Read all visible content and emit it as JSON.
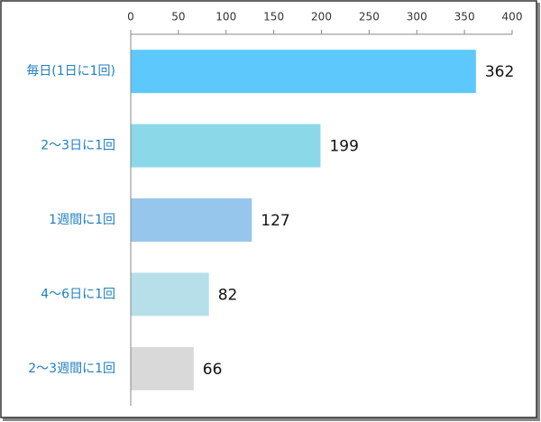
{
  "chart_data": {
    "type": "bar",
    "orientation": "horizontal",
    "categories": [
      "毎日(1日に1回)",
      "2～3日に1回",
      "1週間に1回",
      "4～6日に1回",
      "2～3週間に1回"
    ],
    "values": [
      362,
      199,
      127,
      82,
      66
    ],
    "colors": [
      "#5cc8fb",
      "#8bd8e9",
      "#97c6ec",
      "#b7dfe9",
      "#d9d9d9"
    ],
    "xlim": [
      0,
      400
    ],
    "xticks": [
      0,
      50,
      100,
      150,
      200,
      250,
      300,
      350,
      400
    ]
  }
}
